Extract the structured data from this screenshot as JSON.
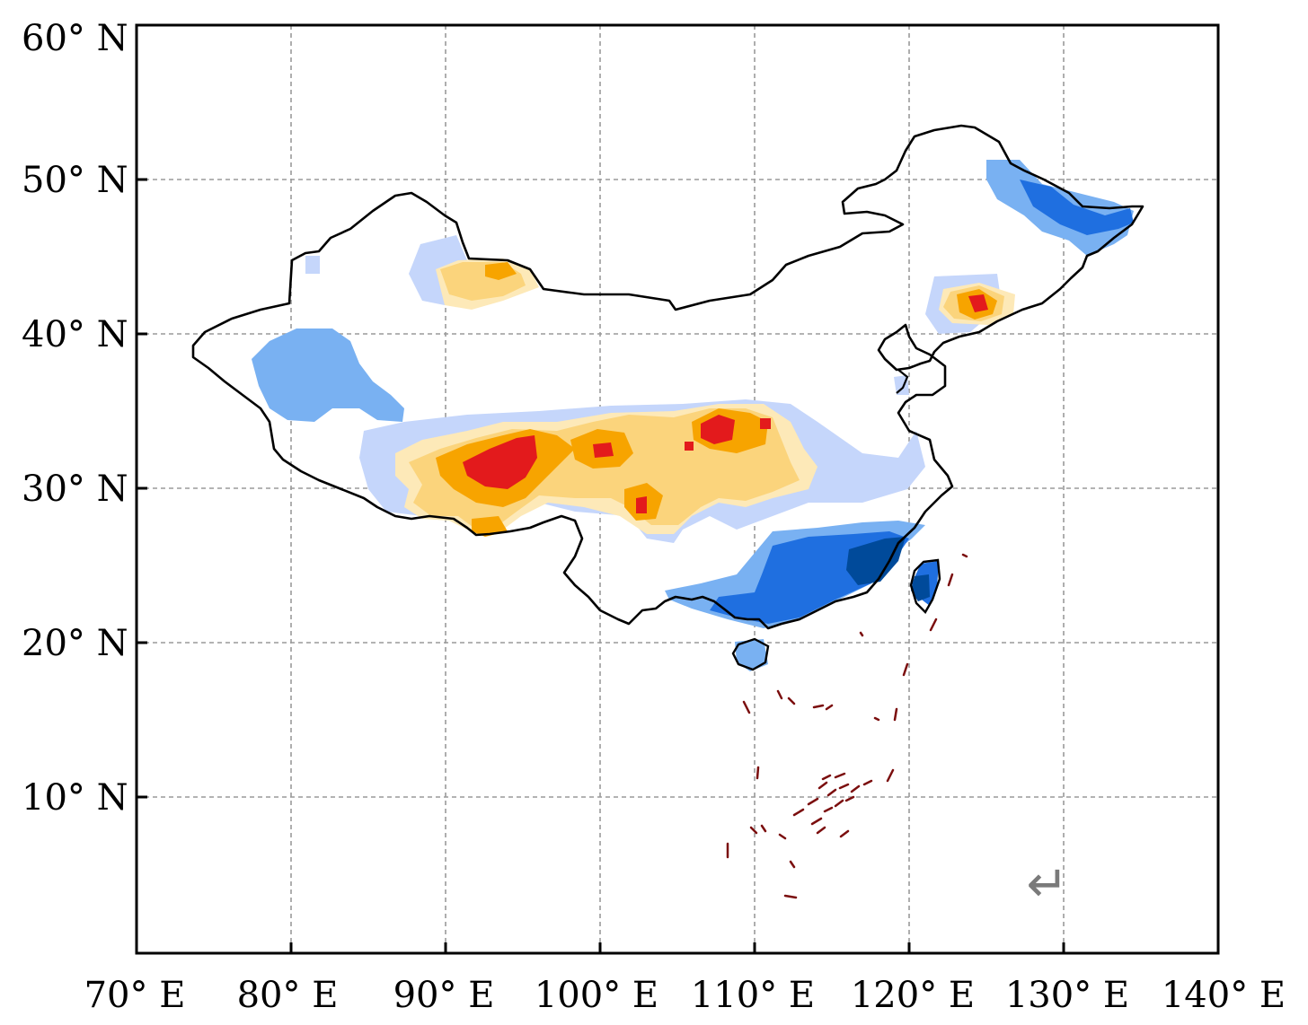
{
  "map": {
    "x_ticks": [
      "70° E",
      "80° E",
      "90° E",
      "100° E",
      "110° E",
      "120° E",
      "130° E",
      "140° E"
    ],
    "y_ticks": [
      "10° N",
      "20° N",
      "30° N",
      "40° N",
      "50° N",
      "60° N"
    ],
    "x_range": [
      70,
      140
    ],
    "y_range": [
      0,
      60
    ],
    "return_symbol": "↵",
    "colors": {
      "frame": "#000000",
      "grid": "#9a9a9a",
      "boundary": "#000000",
      "islands": "#7b0e0e",
      "anomaly_strong_positive": "#e31a1c",
      "anomaly_positive": "#f7a400",
      "anomaly_weak_positive": "#fbd47c",
      "anomaly_faint_positive": "#fde9b8",
      "anomaly_faint_negative": "#c5d6fb",
      "anomaly_weak_negative": "#79b1f2",
      "anomaly_negative": "#1f6fe0",
      "anomaly_strong_negative": "#004a9a"
    }
  }
}
